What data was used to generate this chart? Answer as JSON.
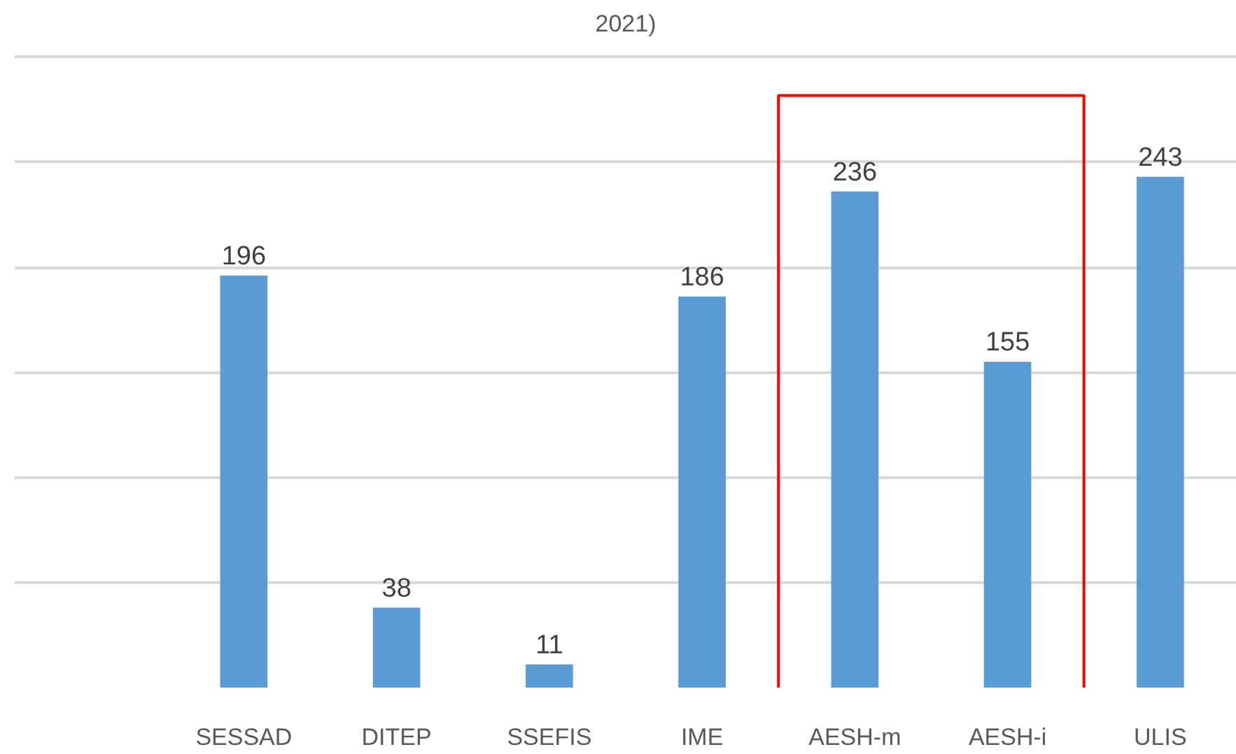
{
  "chart_data": {
    "type": "bar",
    "title": "2021)",
    "categories": [
      null,
      "SESSAD",
      "DITEP",
      "SSEFIS",
      "IME",
      "AESH-m",
      "AESH-i",
      "ULIS"
    ],
    "values": [
      null,
      196,
      38,
      11,
      186,
      236,
      155,
      243
    ],
    "color": "#5b9bd5",
    "data_labels": true,
    "tick_labels": "x",
    "grid": "y"
  }
}
